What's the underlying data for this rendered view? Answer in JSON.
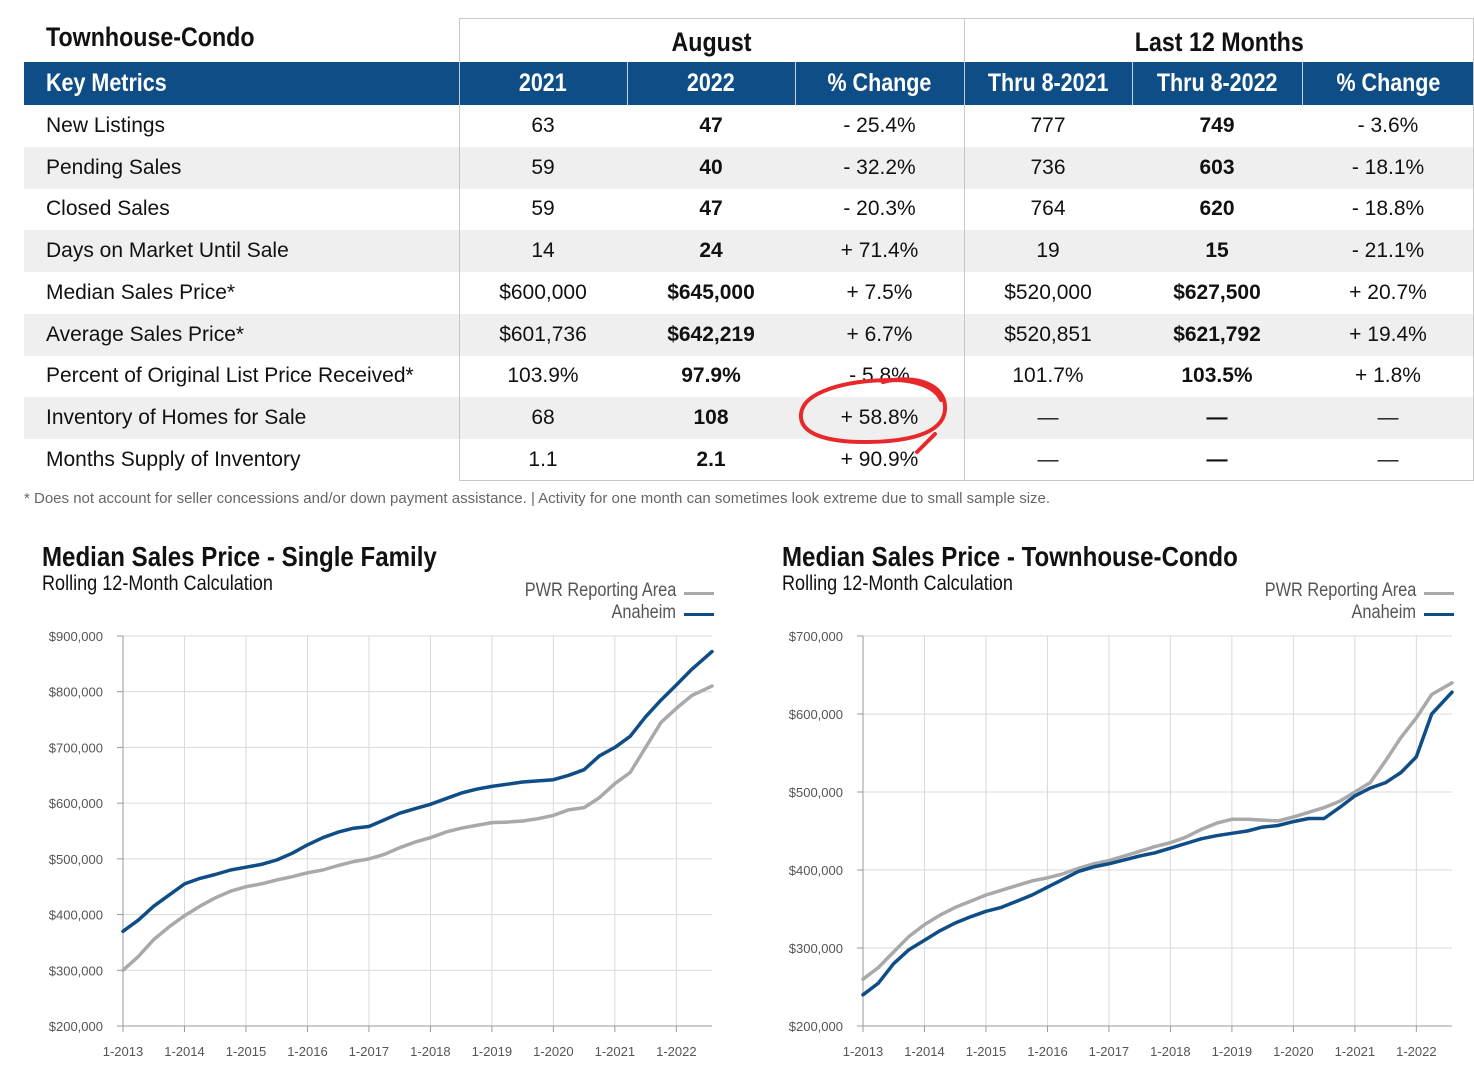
{
  "table": {
    "section_title": "Townhouse-Condo",
    "groups": {
      "august": "August",
      "last12": "Last 12 Months"
    },
    "headers": [
      "Key Metrics",
      "2021",
      "2022",
      "% Change",
      "Thru 8-2021",
      "Thru 8-2022",
      "% Change"
    ],
    "rows": [
      {
        "label": "New Listings",
        "a2021": "63",
        "a2022": "47",
        "achg": "- 25.4%",
        "t2021": "777",
        "t2022": "749",
        "tchg": "- 3.6%"
      },
      {
        "label": "Pending Sales",
        "a2021": "59",
        "a2022": "40",
        "achg": "- 32.2%",
        "t2021": "736",
        "t2022": "603",
        "tchg": "- 18.1%"
      },
      {
        "label": "Closed Sales",
        "a2021": "59",
        "a2022": "47",
        "achg": "- 20.3%",
        "t2021": "764",
        "t2022": "620",
        "tchg": "- 18.8%"
      },
      {
        "label": "Days on Market Until Sale",
        "a2021": "14",
        "a2022": "24",
        "achg": "+ 71.4%",
        "t2021": "19",
        "t2022": "15",
        "tchg": "- 21.1%"
      },
      {
        "label": "Median Sales Price*",
        "a2021": "$600,000",
        "a2022": "$645,000",
        "achg": "+ 7.5%",
        "t2021": "$520,000",
        "t2022": "$627,500",
        "tchg": "+ 20.7%"
      },
      {
        "label": "Average Sales Price*",
        "a2021": "$601,736",
        "a2022": "$642,219",
        "achg": "+ 6.7%",
        "t2021": "$520,851",
        "t2022": "$621,792",
        "tchg": "+ 19.4%"
      },
      {
        "label": "Percent of Original List Price Received*",
        "a2021": "103.9%",
        "a2022": "97.9%",
        "achg": "- 5.8%",
        "t2021": "101.7%",
        "t2022": "103.5%",
        "tchg": "+ 1.8%"
      },
      {
        "label": "Inventory of Homes for Sale",
        "a2021": "68",
        "a2022": "108",
        "achg": "+ 58.8%",
        "t2021": "—",
        "t2022": "—",
        "tchg": "—"
      },
      {
        "label": "Months Supply of Inventory",
        "a2021": "1.1",
        "a2022": "2.1",
        "achg": "+ 90.9%",
        "t2021": "—",
        "t2022": "—",
        "tchg": "—"
      }
    ],
    "footnote": "* Does not account for seller concessions and/or down payment assistance. | Activity for one month can sometimes look extreme due to small sample size.",
    "annotation_color": "#e8292b"
  },
  "colors": {
    "header_bg": "#0f4d87",
    "series_pwr": "#a9a9a9",
    "series_anaheim": "#0f4d87",
    "grid": "#d9d9d9"
  },
  "chart_data": [
    {
      "type": "line",
      "title": "Median Sales Price - Single Family",
      "subtitle": "Rolling 12-Month Calculation",
      "x_ticks": [
        "1-2013",
        "1-2014",
        "1-2015",
        "1-2016",
        "1-2017",
        "1-2018",
        "1-2019",
        "1-2020",
        "1-2021",
        "1-2022"
      ],
      "x_range": [
        2013.0,
        2022.58
      ],
      "y_ticks": [
        "$200,000",
        "$300,000",
        "$400,000",
        "$500,000",
        "$600,000",
        "$700,000",
        "$800,000",
        "$900,000"
      ],
      "ylim": [
        200000,
        900000
      ],
      "grid": true,
      "legend": "top-right",
      "series": [
        {
          "name": "PWR Reporting Area",
          "color": "#a9a9a9",
          "x": [
            2013.0,
            2013.25,
            2013.5,
            2013.75,
            2014.0,
            2014.25,
            2014.5,
            2014.75,
            2015.0,
            2015.25,
            2015.5,
            2015.75,
            2016.0,
            2016.25,
            2016.5,
            2016.75,
            2017.0,
            2017.25,
            2017.5,
            2017.75,
            2018.0,
            2018.25,
            2018.5,
            2018.75,
            2019.0,
            2019.25,
            2019.5,
            2019.75,
            2020.0,
            2020.25,
            2020.5,
            2020.75,
            2021.0,
            2021.25,
            2021.5,
            2021.75,
            2022.0,
            2022.25,
            2022.58
          ],
          "y": [
            300000,
            325000,
            355000,
            378000,
            398000,
            415000,
            430000,
            442000,
            450000,
            455000,
            462000,
            468000,
            475000,
            480000,
            488000,
            495000,
            500000,
            508000,
            520000,
            530000,
            538000,
            548000,
            555000,
            560000,
            565000,
            566000,
            568000,
            572000,
            578000,
            588000,
            592000,
            610000,
            635000,
            655000,
            700000,
            745000,
            770000,
            793000,
            810000
          ]
        },
        {
          "name": "Anaheim",
          "color": "#0f4d87",
          "x": [
            2013.0,
            2013.25,
            2013.5,
            2013.75,
            2014.0,
            2014.25,
            2014.5,
            2014.75,
            2015.0,
            2015.25,
            2015.5,
            2015.75,
            2016.0,
            2016.25,
            2016.5,
            2016.75,
            2017.0,
            2017.25,
            2017.5,
            2017.75,
            2018.0,
            2018.25,
            2018.5,
            2018.75,
            2019.0,
            2019.25,
            2019.5,
            2019.75,
            2020.0,
            2020.25,
            2020.5,
            2020.75,
            2021.0,
            2021.25,
            2021.5,
            2021.75,
            2022.0,
            2022.25,
            2022.58
          ],
          "y": [
            370000,
            390000,
            415000,
            435000,
            455000,
            465000,
            472000,
            480000,
            485000,
            490000,
            498000,
            510000,
            525000,
            538000,
            548000,
            555000,
            558000,
            570000,
            582000,
            590000,
            598000,
            608000,
            618000,
            625000,
            630000,
            634000,
            638000,
            640000,
            642000,
            650000,
            660000,
            685000,
            700000,
            720000,
            755000,
            785000,
            812000,
            840000,
            872000
          ]
        }
      ]
    },
    {
      "type": "line",
      "title": "Median Sales Price - Townhouse-Condo",
      "subtitle": "Rolling 12-Month Calculation",
      "x_ticks": [
        "1-2013",
        "1-2014",
        "1-2015",
        "1-2016",
        "1-2017",
        "1-2018",
        "1-2019",
        "1-2020",
        "1-2021",
        "1-2022"
      ],
      "x_range": [
        2013.0,
        2022.58
      ],
      "y_ticks": [
        "$200,000",
        "$300,000",
        "$400,000",
        "$500,000",
        "$600,000",
        "$700,000"
      ],
      "ylim": [
        200000,
        700000
      ],
      "grid": true,
      "legend": "top-right",
      "series": [
        {
          "name": "PWR Reporting Area",
          "color": "#a9a9a9",
          "x": [
            2013.0,
            2013.25,
            2013.5,
            2013.75,
            2014.0,
            2014.25,
            2014.5,
            2014.75,
            2015.0,
            2015.25,
            2015.5,
            2015.75,
            2016.0,
            2016.25,
            2016.5,
            2016.75,
            2017.0,
            2017.25,
            2017.5,
            2017.75,
            2018.0,
            2018.25,
            2018.5,
            2018.75,
            2019.0,
            2019.25,
            2019.5,
            2019.75,
            2020.0,
            2020.25,
            2020.5,
            2020.75,
            2021.0,
            2021.25,
            2021.5,
            2021.75,
            2022.0,
            2022.25,
            2022.58
          ],
          "y": [
            260000,
            275000,
            295000,
            315000,
            330000,
            342000,
            352000,
            360000,
            368000,
            374000,
            380000,
            386000,
            390000,
            395000,
            402000,
            408000,
            412000,
            418000,
            424000,
            430000,
            435000,
            442000,
            452000,
            460000,
            465000,
            465000,
            464000,
            463000,
            468000,
            474000,
            480000,
            488000,
            500000,
            512000,
            540000,
            570000,
            595000,
            625000,
            640000
          ]
        },
        {
          "name": "Anaheim",
          "color": "#0f4d87",
          "x": [
            2013.0,
            2013.25,
            2013.5,
            2013.75,
            2014.0,
            2014.25,
            2014.5,
            2014.75,
            2015.0,
            2015.25,
            2015.5,
            2015.75,
            2016.0,
            2016.25,
            2016.5,
            2016.75,
            2017.0,
            2017.25,
            2017.5,
            2017.75,
            2018.0,
            2018.25,
            2018.5,
            2018.75,
            2019.0,
            2019.25,
            2019.5,
            2019.75,
            2020.0,
            2020.25,
            2020.5,
            2020.75,
            2021.0,
            2021.25,
            2021.5,
            2021.75,
            2022.0,
            2022.25,
            2022.58
          ],
          "y": [
            240000,
            255000,
            280000,
            298000,
            310000,
            322000,
            332000,
            340000,
            347000,
            352000,
            360000,
            368000,
            378000,
            388000,
            398000,
            404000,
            408000,
            413000,
            418000,
            422000,
            428000,
            434000,
            440000,
            444000,
            447000,
            450000,
            455000,
            457000,
            462000,
            466000,
            466000,
            480000,
            495000,
            505000,
            512000,
            525000,
            545000,
            600000,
            628000
          ]
        }
      ]
    }
  ]
}
